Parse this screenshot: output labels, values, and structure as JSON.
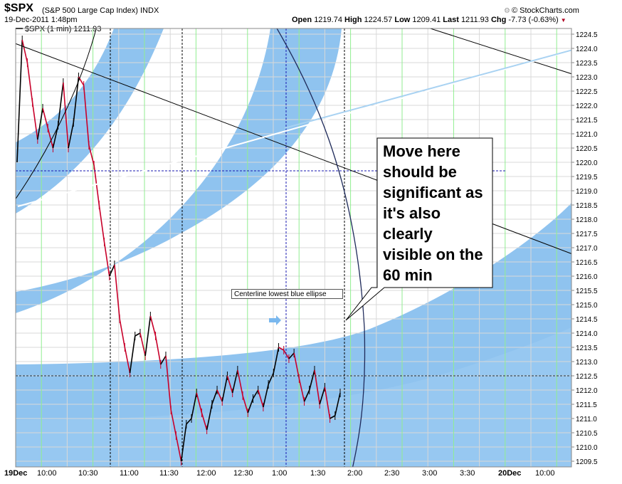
{
  "header": {
    "symbol": "$SPX",
    "name": "(S&P 500 Large Cap Index) INDX",
    "brand": "© StockCharts.com",
    "brand_icon": "gear-icon",
    "date": "19-Dec-2011 1:48pm",
    "ohlc": {
      "open_label": "Open",
      "open": "1219.74",
      "high_label": "High",
      "high": "1224.57",
      "low_label": "Low",
      "low": "1209.41",
      "last_label": "Last",
      "last": "1211.93",
      "chg_label": "Chg",
      "chg": "-7.73 (-0.63%)"
    },
    "legend": "$SPX (1 min) 1211.93"
  },
  "callout_text": "Move here should be significant as it's also clearly visible on the 60 min",
  "note_text": "Centerline lowest blue ellipse",
  "colors": {
    "ellipse_fill": "#8fc3ef",
    "grid_minor": "#90ee90",
    "grid_major": "#d8d8d8",
    "price_up": "#000000",
    "price_down": "#c8002a",
    "arrow": "#7ab8ee"
  },
  "chart_data": {
    "type": "line",
    "series": [
      {
        "values": [
          1220.0,
          1224.3,
          1223.5,
          1222.1,
          1220.8,
          1221.9,
          1221.2,
          1220.5,
          1221.3,
          1222.8,
          1220.5,
          1221.4,
          1223.0,
          1222.7,
          1220.6,
          1219.9,
          1218.5,
          1217.2,
          1216.0,
          1216.4,
          1214.5,
          1213.5,
          1212.6,
          1213.9,
          1214.0,
          1213.2,
          1214.6,
          1213.9,
          1212.9,
          1213.2,
          1211.3,
          1210.4,
          1209.5,
          1210.8,
          1211.0,
          1211.9,
          1211.2,
          1210.6,
          1211.5,
          1212.0,
          1211.6,
          1212.5,
          1211.9,
          1212.7,
          1211.8,
          1211.2,
          1211.7,
          1212.0,
          1211.4,
          1212.2,
          1212.6,
          1213.5,
          1213.4,
          1213.1,
          1213.3,
          1212.4,
          1211.6,
          1212.0,
          1212.7,
          1211.5,
          1212.1,
          1211.0,
          1211.1,
          1211.9
        ]
      }
    ],
    "x_ticks": [
      "19Dec",
      "10:00",
      "10:30",
      "11:00",
      "11:30",
      "12:00",
      "12:30",
      "1:00",
      "1:30",
      "2:00",
      "2:30",
      "3:00",
      "3:30",
      "20Dec",
      "10:00"
    ],
    "y_ticks": [
      "1224.5",
      "1224.0",
      "1223.5",
      "1223.0",
      "1222.5",
      "1222.0",
      "1221.5",
      "1221.0",
      "1220.5",
      "1220.0",
      "1219.5",
      "1219.0",
      "1218.5",
      "1218.0",
      "1217.5",
      "1217.0",
      "1216.5",
      "1216.0",
      "1215.5",
      "1215.0",
      "1214.5",
      "1214.0",
      "1213.5",
      "1213.0",
      "1212.5",
      "1212.0",
      "1211.5",
      "1211.0",
      "1210.5",
      "1210.0",
      "1209.5"
    ],
    "ylim": [
      1209.3,
      1224.7
    ],
    "horizontal_levels": [
      1219.7,
      1212.5
    ],
    "grid": true
  }
}
